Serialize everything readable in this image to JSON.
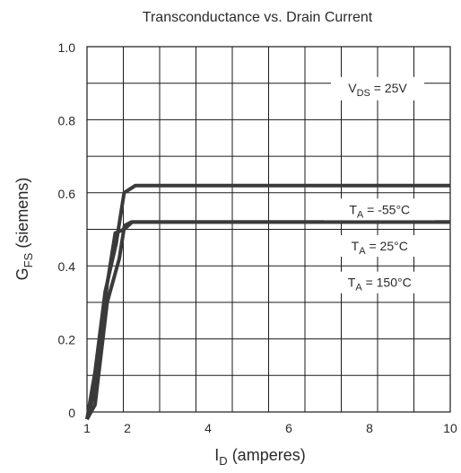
{
  "chart_data": {
    "type": "line",
    "title": "Transconductance vs. Drain Current",
    "xlabel_main": "I",
    "xlabel_sub": "D",
    "xlabel_rest": " (amperes)",
    "ylabel_main": "G",
    "ylabel_sub": "FS",
    "ylabel_rest": " (siemens)",
    "xlim": [
      1,
      10
    ],
    "ylim": [
      0,
      1.0
    ],
    "xticks": [
      1,
      2,
      4,
      6,
      8,
      10
    ],
    "xtick_labels": [
      "1",
      "2",
      "4",
      "6",
      "8",
      "10"
    ],
    "yticks": [
      0,
      0.2,
      0.4,
      0.6,
      0.8,
      1.0
    ],
    "ytick_labels": [
      "0",
      "0.2",
      "0.4",
      "0.6",
      "0.8",
      "1.0"
    ],
    "grid": true,
    "series": [
      {
        "name": "T_A = -55°C",
        "color": "#3a3a3a",
        "points": [
          [
            1.0,
            -0.02
          ],
          [
            1.2,
            0.06
          ],
          [
            1.35,
            0.2
          ],
          [
            1.5,
            0.35
          ],
          [
            1.7,
            0.49
          ],
          [
            1.92,
            0.5
          ],
          [
            2.12,
            0.52
          ],
          [
            5,
            0.52
          ],
          [
            10,
            0.52
          ]
        ],
        "label": {
          "main": "T",
          "sub": "A",
          "rest": " = -55°C"
        },
        "label_x": 8.25,
        "label_y": 0.557
      },
      {
        "name": "T_A = 25°C",
        "color": "#3a3a3a",
        "points": [
          [
            1.0,
            -0.02
          ],
          [
            1.2,
            0.02
          ],
          [
            1.5,
            0.3
          ],
          [
            1.8,
            0.42
          ],
          [
            1.93,
            0.51
          ],
          [
            2.1,
            0.52
          ],
          [
            5,
            0.52
          ],
          [
            10,
            0.52
          ]
        ],
        "label": {
          "main": "T",
          "sub": "A",
          "rest": " = 25°C"
        },
        "label_x": 8.25,
        "label_y": 0.457
      },
      {
        "name": "T_A = 150°C",
        "color": "#3a3a3a",
        "points": [
          [
            1.0,
            -0.02
          ],
          [
            1.2,
            0.11
          ],
          [
            1.45,
            0.33
          ],
          [
            1.72,
            0.46
          ],
          [
            1.92,
            0.6
          ],
          [
            2.2,
            0.62
          ],
          [
            5,
            0.62
          ],
          [
            10,
            0.62
          ]
        ],
        "label": {
          "main": "T",
          "sub": "A",
          "rest": " = 150°C"
        },
        "label_x": 8.25,
        "label_y": 0.357
      }
    ],
    "annotation": {
      "main": "V",
      "sub": "DS",
      "rest": " = 25V",
      "x": 8.2,
      "y": 0.89
    }
  }
}
